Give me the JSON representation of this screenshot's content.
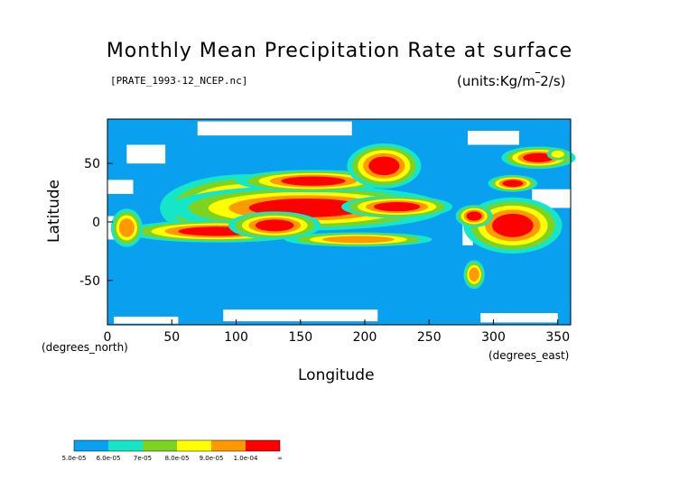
{
  "chart_data": {
    "type": "heatmap",
    "title": "Monthly Mean Precipitation Rate at surface",
    "subtitle": "[PRATE_1993-12_NCEP.nc]",
    "units": "(units:Kg/m^-2/s)",
    "xlabel": "Longitude",
    "ylabel": "Latitude",
    "x_unit_label": "(degrees_east)",
    "y_unit_label": "(degrees_north)",
    "xlim": [
      0,
      360
    ],
    "ylim": [
      -88,
      88
    ],
    "x_ticks": [
      0,
      50,
      100,
      150,
      200,
      250,
      300,
      350
    ],
    "y_ticks": [
      50,
      0,
      -50
    ],
    "colorbar": {
      "colors": [
        "#0aa0f0",
        "#15e6c8",
        "#7ed321",
        "#ffff00",
        "#ff9900",
        "#ff0000"
      ],
      "labels": [
        "5.0e-05",
        "6.0e-05",
        "7e-05",
        "8.0e-05",
        "9.0e-05",
        "1.0e-04",
        "∞"
      ]
    },
    "color_background": "#0aa0f0",
    "color_missing": "#ffffff",
    "regions": [
      {
        "level": 5,
        "center": [
          108,
          12
        ],
        "extent": [
          28,
          12
        ]
      },
      {
        "level": 5,
        "center": [
          155,
          12
        ],
        "extent": [
          45,
          8
        ]
      },
      {
        "level": 5,
        "center": [
          225,
          13
        ],
        "extent": [
          18,
          4
        ]
      },
      {
        "level": 5,
        "center": [
          85,
          -8
        ],
        "extent": [
          30,
          4
        ]
      },
      {
        "level": 5,
        "center": [
          130,
          -3
        ],
        "extent": [
          15,
          5
        ]
      },
      {
        "level": 5,
        "center": [
          160,
          35
        ],
        "extent": [
          25,
          4
        ]
      },
      {
        "level": 5,
        "center": [
          215,
          48
        ],
        "extent": [
          12,
          8
        ]
      },
      {
        "level": 5,
        "center": [
          315,
          33
        ],
        "extent": [
          8,
          3
        ]
      },
      {
        "level": 5,
        "center": [
          315,
          -3
        ],
        "extent": [
          16,
          10
        ]
      },
      {
        "level": 5,
        "center": [
          335,
          55
        ],
        "extent": [
          12,
          4
        ]
      },
      {
        "level": 5,
        "center": [
          285,
          5
        ],
        "extent": [
          6,
          4
        ]
      },
      {
        "level": 4,
        "center": [
          15,
          -5
        ],
        "extent": [
          6,
          8
        ]
      },
      {
        "level": 4,
        "center": [
          195,
          -15
        ],
        "extent": [
          28,
          3
        ]
      },
      {
        "level": 4,
        "center": [
          285,
          -45
        ],
        "extent": [
          4,
          6
        ]
      },
      {
        "level": 3,
        "center": [
          350,
          58
        ],
        "extent": [
          5,
          3
        ]
      }
    ],
    "missing_regions": [
      {
        "center": [
          130,
          80
        ],
        "extent": [
          60,
          6
        ]
      },
      {
        "center": [
          300,
          72
        ],
        "extent": [
          20,
          6
        ]
      },
      {
        "center": [
          30,
          58
        ],
        "extent": [
          15,
          8
        ]
      },
      {
        "center": [
          10,
          30
        ],
        "extent": [
          10,
          6
        ]
      },
      {
        "center": [
          5,
          -5
        ],
        "extent": [
          5,
          10
        ]
      },
      {
        "center": [
          280,
          -10
        ],
        "extent": [
          4,
          10
        ]
      },
      {
        "center": [
          345,
          20
        ],
        "extent": [
          15,
          8
        ]
      },
      {
        "center": [
          150,
          -80
        ],
        "extent": [
          60,
          5
        ]
      },
      {
        "center": [
          320,
          -82
        ],
        "extent": [
          30,
          4
        ]
      },
      {
        "center": [
          30,
          -84
        ],
        "extent": [
          25,
          3
        ]
      }
    ]
  }
}
